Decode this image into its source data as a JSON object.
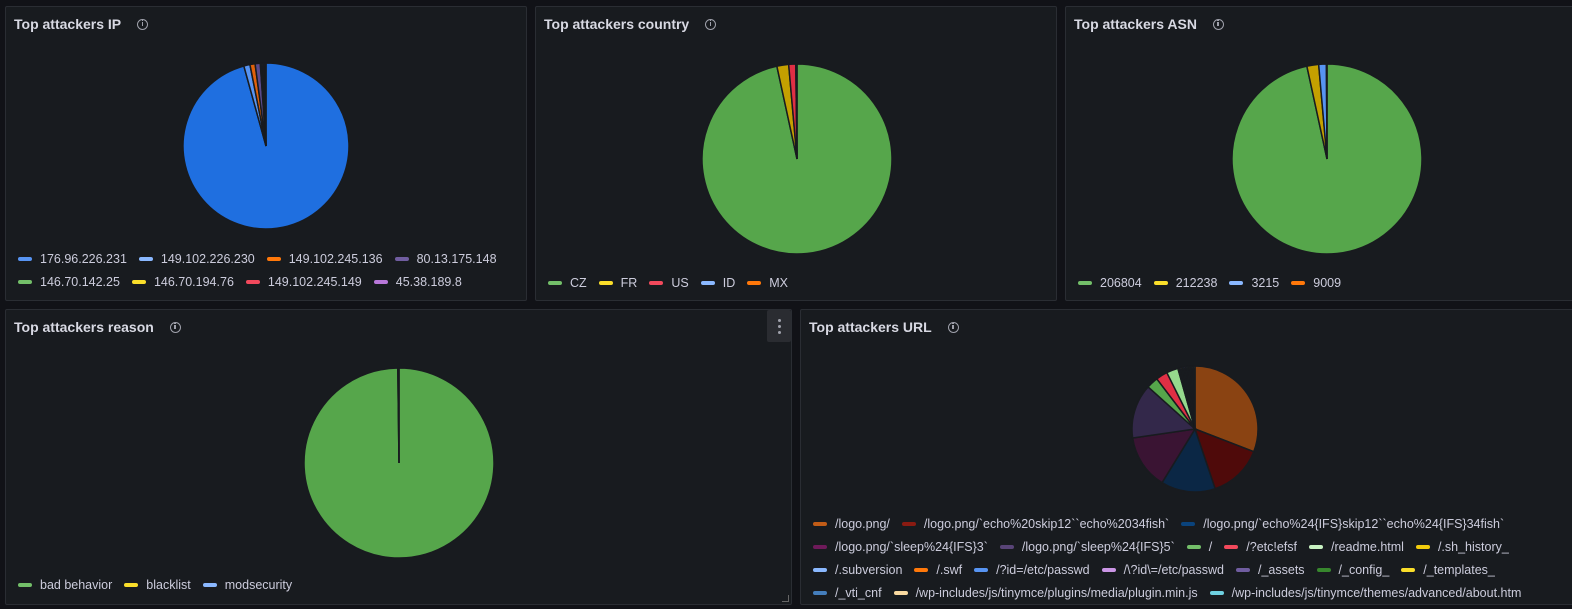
{
  "chart_data": [
    {
      "type": "pie",
      "title": "Top attackers IP",
      "legend_placement": "bottom",
      "categories": [
        "176.96.226.231",
        "149.102.226.230",
        "149.102.245.136",
        "80.13.175.148",
        "146.70.142.25",
        "146.70.194.76",
        "149.102.245.149",
        "45.38.189.8"
      ],
      "values": [
        95.7,
        1.2,
        1.0,
        1.0,
        0.3,
        0.3,
        0.3,
        0.2
      ],
      "colors": [
        "#5794f2",
        "#8ab8ff",
        "#ff780a",
        "#705da0",
        "#73bf69",
        "#fade2a",
        "#f2495c",
        "#b877d9"
      ],
      "fills": [
        "#1f6fe0",
        "#5794f2",
        "#e0610a",
        "#5a4a8a",
        "#56a64b",
        "#d4b106",
        "#e02f44",
        "#a352cc"
      ]
    },
    {
      "type": "pie",
      "title": "Top attackers country",
      "legend_placement": "bottom",
      "categories": [
        "CZ",
        "FR",
        "US",
        "ID",
        "MX"
      ],
      "values": [
        96.6,
        2.0,
        1.2,
        0.1,
        0.1
      ],
      "colors": [
        "#73bf69",
        "#fade2a",
        "#f2495c",
        "#8ab8ff",
        "#ff780a"
      ],
      "fills": [
        "#56a64b",
        "#c4a000",
        "#e02f44",
        "#5794f2",
        "#e0610a"
      ]
    },
    {
      "type": "pie",
      "title": "Top attackers ASN",
      "legend_placement": "bottom",
      "categories": [
        "206804",
        "212238",
        "3215",
        "9009"
      ],
      "values": [
        96.6,
        2.0,
        1.3,
        0.1
      ],
      "colors": [
        "#73bf69",
        "#fade2a",
        "#8ab8ff",
        "#ff780a"
      ],
      "fills": [
        "#56a64b",
        "#c4a000",
        "#5794f2",
        "#e0610a"
      ]
    },
    {
      "type": "pie",
      "title": "Top attackers reason",
      "legend_placement": "bottom",
      "categories": [
        "bad behavior",
        "blacklist",
        "modsecurity"
      ],
      "values": [
        99.8,
        0.1,
        0.1
      ],
      "colors": [
        "#73bf69",
        "#fade2a",
        "#8ab8ff"
      ],
      "fills": [
        "#56a64b",
        "#c4a000",
        "#5794f2"
      ]
    },
    {
      "type": "pie",
      "title": "Top attackers URL",
      "legend_placement": "bottom",
      "categories": [
        "/logo.png/",
        "/logo.png/`echo%20skip12``echo%2034fish`",
        "/logo.png/`echo%24{IFS}skip12``echo%24{IFS}34fish`",
        "/logo.png/`sleep%24{IFS}3`",
        "/logo.png/`sleep%24{IFS}5`",
        "/",
        "/?etc!efsf",
        "/readme.html",
        "/.sh_history_",
        "/.subversion",
        "/.swf",
        "/?id=/etc/passwd",
        "/\\?id\\=/etc/passwd",
        "/_assets",
        "/_config_",
        "/_templates_",
        "/_vti_cnf",
        "/wp-includes/js/tinymce/plugins/media/plugin.min.js",
        "/wp-includes/js/tinymce/themes/advanced/about.htm"
      ],
      "values": [
        31,
        14,
        14,
        14,
        14,
        3,
        3,
        3,
        0.4,
        0.4,
        0.4,
        0.4,
        0.4,
        0.4,
        0.4,
        0.4,
        0.4,
        0.4,
        0.4
      ],
      "colors": [
        "#c15c17",
        "#8a1b12",
        "#0a437c",
        "#6e1a5a",
        "#584477",
        "#73bf69",
        "#f2495c",
        "#c8f2c2",
        "#f2cc0c",
        "#8ab8ff",
        "#ff780a",
        "#5794f2",
        "#ca95e5",
        "#705da0",
        "#37872d",
        "#fade2a",
        "#447ebc",
        "#f9d9a0",
        "#6ed0e0"
      ],
      "fills": [
        "#8a4312",
        "#4f0a0a",
        "#0b2745",
        "#3a1433",
        "#33284a",
        "#56a64b",
        "#e02f44",
        "#96d98d",
        "#d4b106",
        "#5794f2",
        "#e0610a",
        "#3274d9",
        "#a352cc",
        "#5a4a8a",
        "#2c6b24",
        "#d4b106",
        "#2f5f9a",
        "#e0c080",
        "#4fb8c8"
      ]
    }
  ]
}
